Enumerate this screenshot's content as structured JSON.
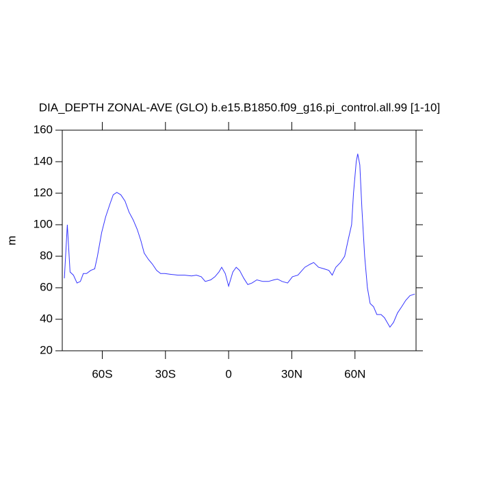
{
  "chart_data": {
    "type": "line",
    "title": "DIA_DEPTH ZONAL-AVE (GLO) b.e15.B1850.f09_g16.pi_control.all.99 [1-10]",
    "y_label": "m",
    "xlim": [
      -79,
      89
    ],
    "ylim": [
      20,
      160
    ],
    "xticks": [
      {
        "value": -60,
        "label": "60S"
      },
      {
        "value": -30,
        "label": "30S"
      },
      0,
      {
        "value": 30,
        "label": "30N"
      },
      {
        "value": 60,
        "label": "60N"
      }
    ],
    "yticks": [
      20,
      40,
      60,
      80,
      100,
      120,
      140,
      160
    ],
    "x": [
      -78,
      -76.6,
      -75.3,
      -73.7,
      -72,
      -70.4,
      -69,
      -67.5,
      -65.5,
      -63.6,
      -62.3,
      -60.3,
      -58.4,
      -56.4,
      -54.8,
      -53.1,
      -51.2,
      -49.2,
      -47.3,
      -45.3,
      -43.4,
      -41.7,
      -40.1,
      -38.1,
      -36.2,
      -34.2,
      -32.3,
      -30.3,
      -27.4,
      -24.1,
      -20.9,
      -17.6,
      -15.3,
      -13,
      -11.1,
      -8.5,
      -6.5,
      -4.6,
      -3.3,
      -1.6,
      0,
      2,
      3.6,
      5.2,
      7.2,
      9.1,
      11.1,
      13.4,
      16.3,
      18.9,
      21.5,
      23.2,
      25.4,
      28,
      30.3,
      32.9,
      36.2,
      38.8,
      40.4,
      42.7,
      45.3,
      47.6,
      49.2,
      50.9,
      53.1,
      55.1,
      56.7,
      58.4,
      59.3,
      60.6,
      61.3,
      62.3,
      63.3,
      64.6,
      65.9,
      67.2,
      68.8,
      70.4,
      72.4,
      74,
      75.3,
      76.6,
      78.3,
      80.2,
      82.2,
      84.1,
      86.1,
      88.4
    ],
    "series": [
      {
        "name": "DIA_DEPTH",
        "color": "#3333ff",
        "values": [
          66,
          100,
          70,
          68,
          63,
          64,
          69,
          69,
          71,
          72,
          80,
          95,
          105,
          113,
          119,
          120.5,
          119,
          115,
          108,
          103,
          97,
          90,
          82,
          78,
          75,
          71,
          69,
          69,
          68.5,
          68,
          68,
          67.5,
          68,
          67,
          64,
          65,
          67,
          70,
          73,
          69,
          61,
          70,
          73,
          71,
          66,
          62,
          63,
          65,
          64,
          64,
          65,
          65.5,
          64,
          63,
          67,
          68,
          73,
          75,
          76,
          73,
          72,
          71,
          68,
          73,
          76,
          80,
          90,
          100,
          120,
          140,
          145,
          138,
          110,
          80,
          60,
          50,
          48,
          43,
          43,
          41,
          38,
          35,
          38,
          44,
          48,
          52,
          55,
          56
        ]
      }
    ]
  }
}
